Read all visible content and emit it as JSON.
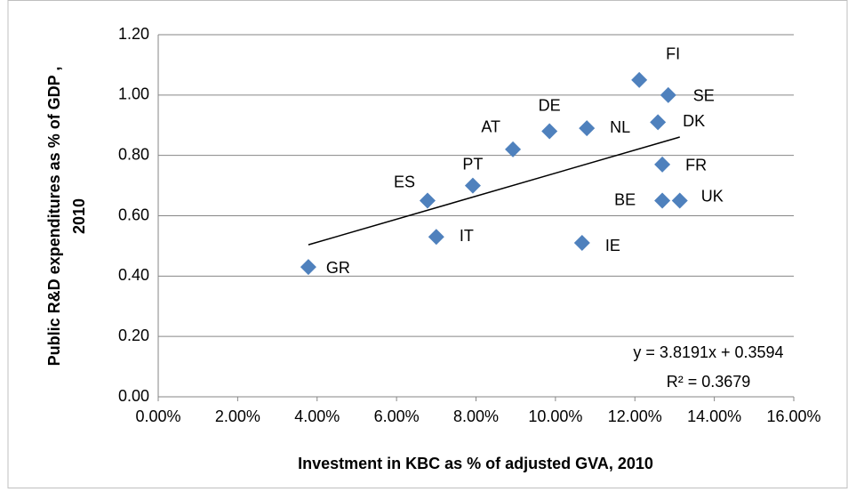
{
  "chart_data": {
    "type": "scatter",
    "x_label": "Investment in KBC as % of adjusted GVA, 2010",
    "y_label": [
      "Public R&D expenditures as % of GDP ,",
      "2010"
    ],
    "categories": [
      "GR",
      "ES",
      "IT",
      "PT",
      "AT",
      "DE",
      "NL",
      "IE",
      "FI",
      "SE",
      "DK",
      "FR",
      "BE",
      "UK"
    ],
    "x": [
      0.0378,
      0.0678,
      0.07,
      0.0792,
      0.0893,
      0.0985,
      0.1079,
      0.1067,
      0.1211,
      0.1284,
      0.1258,
      0.1269,
      0.1269,
      0.1313
    ],
    "values": [
      0.43,
      0.65,
      0.53,
      0.7,
      0.82,
      0.88,
      0.89,
      0.51,
      1.05,
      1.0,
      0.91,
      0.77,
      0.65,
      0.65
    ],
    "color": "#4f81bd",
    "trendline": {
      "slope": 3.8191,
      "intercept": 0.3594,
      "color": "#000000"
    },
    "annotations": [
      "y = 3.8191x + 0.3594",
      "R² = 0.3679"
    ],
    "xlim": [
      0,
      0.16
    ],
    "xticks": [
      {
        "value": 0,
        "label": "0.00%"
      },
      {
        "value": 0.02,
        "label": "2.00%"
      },
      {
        "value": 0.04,
        "label": "4.00%"
      },
      {
        "value": 0.06,
        "label": "6.00%"
      },
      {
        "value": 0.08,
        "label": "8.00%"
      },
      {
        "value": 0.1,
        "label": "10.00%"
      },
      {
        "value": 0.12,
        "label": "12.00%"
      },
      {
        "value": 0.14,
        "label": "14.00%"
      },
      {
        "value": 0.16,
        "label": "16.00%"
      }
    ],
    "ylim": [
      0,
      1.2
    ],
    "yticks": [
      {
        "value": 0,
        "label": "0.00"
      },
      {
        "value": 0.2,
        "label": "0.20"
      },
      {
        "value": 0.4,
        "label": "0.40"
      },
      {
        "value": 0.6,
        "label": "0.60"
      },
      {
        "value": 0.8,
        "label": "0.80"
      },
      {
        "value": 1.0,
        "label": "1.00"
      },
      {
        "value": 1.2,
        "label": "1.20"
      }
    ],
    "grid": true
  }
}
